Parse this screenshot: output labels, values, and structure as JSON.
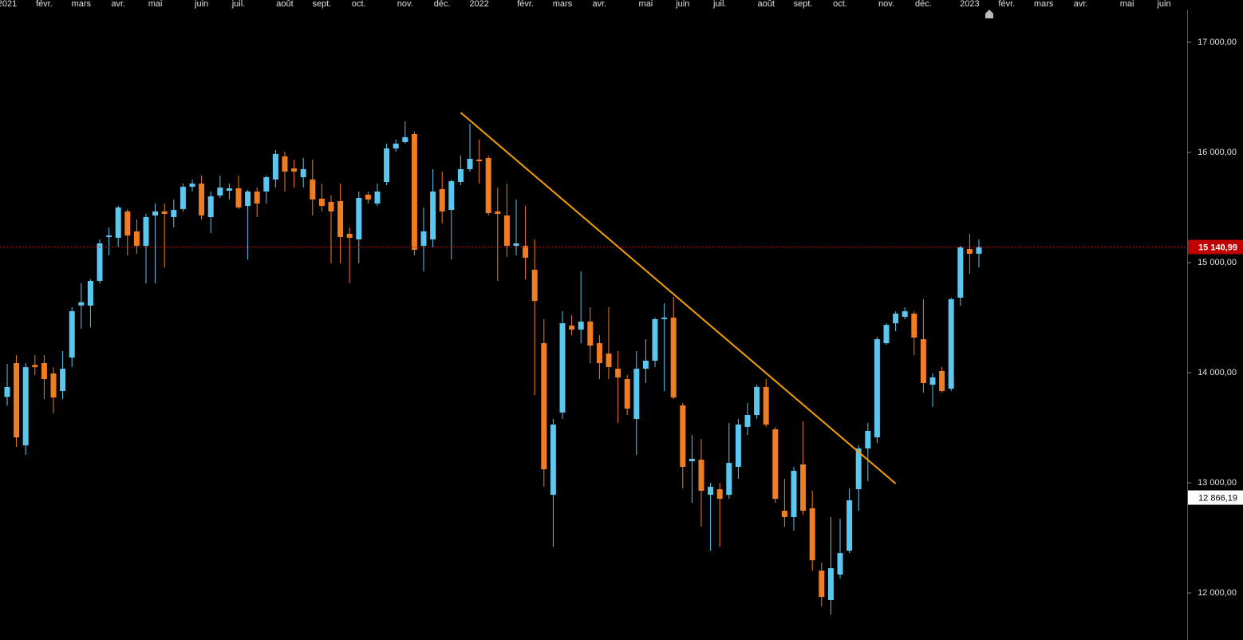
{
  "chart_data": {
    "type": "candlestick",
    "categories": [
      "2021",
      null,
      null,
      null,
      "févr.",
      null,
      null,
      null,
      "mars",
      null,
      null,
      null,
      "avr.",
      null,
      null,
      null,
      "mai",
      null,
      null,
      null,
      null,
      "juin",
      null,
      null,
      null,
      "juil.",
      null,
      null,
      null,
      null,
      "août",
      null,
      null,
      null,
      "sept.",
      null,
      null,
      null,
      "oct.",
      null,
      null,
      null,
      null,
      "nov.",
      null,
      null,
      null,
      "déc.",
      null,
      null,
      null,
      "2022",
      null,
      null,
      null,
      null,
      "févr.",
      null,
      null,
      null,
      "mars",
      null,
      null,
      null,
      "avr.",
      null,
      null,
      null,
      null,
      "mai",
      null,
      null,
      null,
      "juin",
      null,
      null,
      null,
      "juil.",
      null,
      null,
      null,
      null,
      "août",
      null,
      null,
      null,
      "sept.",
      null,
      null,
      null,
      "oct.",
      null,
      null,
      null,
      null,
      "nov.",
      null,
      null,
      null,
      "déc.",
      null,
      null,
      null,
      null,
      "2023",
      null,
      null,
      null,
      "févr.",
      null,
      null,
      null,
      "mars",
      null,
      null,
      null,
      "avr.",
      null,
      null,
      null,
      null,
      "mai",
      null,
      null,
      null,
      "juin",
      null,
      null
    ],
    "open": [
      13780,
      14087,
      13340,
      14070,
      14087,
      13993,
      13834,
      14138,
      14610,
      14609,
      14834,
      15232,
      15225,
      15464,
      15283,
      15152,
      15427,
      15464,
      15413,
      15486,
      15688,
      15717,
      15413,
      15609,
      15652,
      15674,
      15514,
      15645,
      15645,
      15754,
      15964,
      15855,
      15775,
      15754,
      15580,
      15551,
      15558,
      15261,
      15210,
      15616,
      15536,
      15732,
      16036,
      16094,
      16167,
      15152,
      15210,
      15667,
      15478,
      15732,
      15848,
      15935,
      15949,
      15464,
      15428,
      15152,
      15152,
      14935,
      14268,
      12891,
      13638,
      14428,
      14391,
      14464,
      14268,
      14174,
      14036,
      13942,
      13580,
      14036,
      14109,
      14486,
      14500,
      13703,
      13196,
      13210,
      12891,
      12942,
      12891,
      13145,
      13508,
      13616,
      13870,
      13486,
      12747,
      12689,
      13167,
      12769,
      12203,
      11935,
      12167,
      12384,
      12942,
      13312,
      13413,
      14268,
      14449,
      14507,
      14536,
      14304,
      13891,
      14015,
      13855,
      14681,
      15123,
      15080,
      null,
      null,
      null,
      null,
      null,
      null,
      null,
      null,
      null,
      null,
      null,
      null,
      null,
      null,
      null,
      null,
      null,
      null,
      null,
      null,
      null,
      null
    ],
    "high": [
      14080,
      14160,
      14087,
      14160,
      14160,
      14050,
      14196,
      14594,
      14812,
      14848,
      15210,
      15319,
      15514,
      15486,
      15391,
      15442,
      15536,
      15536,
      15572,
      15717,
      15754,
      15790,
      15645,
      15790,
      15717,
      15790,
      15660,
      15681,
      15790,
      16022,
      16007,
      15935,
      15949,
      15935,
      15717,
      15609,
      15717,
      15319,
      15645,
      15645,
      15717,
      16080,
      16116,
      16283,
      16189,
      15500,
      15848,
      15826,
      15754,
      15971,
      16261,
      16116,
      15971,
      15681,
      15717,
      15572,
      15514,
      15210,
      14486,
      13580,
      14558,
      14522,
      14920,
      14594,
      14341,
      14594,
      14196,
      13978,
      14196,
      14304,
      14500,
      14630,
      14688,
      13725,
      13435,
      13399,
      13000,
      13000,
      13544,
      13580,
      13725,
      13891,
      13942,
      13507,
      13036,
      13145,
      13558,
      12928,
      12275,
      12689,
      12674,
      12950,
      13341,
      13544,
      14326,
      14449,
      14558,
      14594,
      14558,
      14667,
      13993,
      14051,
      14681,
      15152,
      15261,
      15210,
      null,
      null,
      null,
      null,
      null,
      null,
      null,
      null,
      null,
      null,
      null,
      null,
      null,
      null,
      null,
      null,
      null,
      null,
      null,
      null,
      null,
      null
    ],
    "low": [
      13700,
      13326,
      13254,
      13978,
      13761,
      13631,
      13761,
      14051,
      14398,
      14413,
      14812,
      15065,
      15138,
      15065,
      15080,
      14812,
      14812,
      14957,
      15319,
      15464,
      15645,
      15391,
      15268,
      15587,
      15572,
      15486,
      15029,
      15413,
      15536,
      15681,
      15645,
      15681,
      15681,
      15427,
      15464,
      14993,
      14993,
      14812,
      14993,
      15536,
      15514,
      15703,
      16007,
      16080,
      15065,
      14920,
      15138,
      15355,
      15029,
      15703,
      15826,
      15717,
      15427,
      14834,
      15051,
      15065,
      14848,
      13797,
      12964,
      12420,
      13580,
      14341,
      14268,
      14087,
      13942,
      13942,
      13544,
      13616,
      13254,
      13906,
      14051,
      13833,
      13761,
      12950,
      12819,
      12602,
      12384,
      12420,
      12855,
      13036,
      13435,
      13580,
      13507,
      12819,
      12602,
      12565,
      12710,
      12203,
      11877,
      11804,
      12130,
      12362,
      12746,
      13015,
      13362,
      14254,
      14377,
      14486,
      14159,
      13819,
      13689,
      13819,
      13833,
      14609,
      14899,
      14957,
      null,
      null,
      null,
      null,
      null,
      null,
      null,
      null,
      null,
      null,
      null,
      null,
      null,
      null,
      null,
      null,
      null,
      null,
      null,
      null,
      null,
      null
    ],
    "close": [
      13870,
      13413,
      14050,
      14050,
      13942,
      13775,
      14036,
      14558,
      14640,
      14834,
      15174,
      15246,
      15500,
      15246,
      15152,
      15413,
      15464,
      15442,
      15478,
      15688,
      15717,
      15428,
      15601,
      15681,
      15674,
      15500,
      15645,
      15536,
      15775,
      15986,
      15826,
      15826,
      15848,
      15573,
      15514,
      15464,
      15232,
      15225,
      15587,
      15572,
      15645,
      16036,
      16080,
      16138,
      15116,
      15283,
      15645,
      15464,
      15739,
      15848,
      15942,
      15920,
      15449,
      15442,
      15152,
      15174,
      15044,
      14652,
      13123,
      13529,
      14449,
      14391,
      14464,
      14246,
      14087,
      14051,
      13957,
      13674,
      14036,
      14109,
      14486,
      14500,
      13775,
      13145,
      13218,
      12928,
      12964,
      12855,
      13181,
      13529,
      13616,
      13870,
      13529,
      12855,
      12689,
      13109,
      12747,
      12297,
      11964,
      12225,
      12362,
      12841,
      13312,
      13471,
      14304,
      14434,
      14536,
      14558,
      14319,
      13906,
      13957,
      13834,
      14667,
      15138,
      15080,
      15140.99,
      null,
      null,
      null,
      null,
      null,
      null,
      null,
      null,
      null,
      null,
      null,
      null,
      null,
      null,
      null,
      null,
      null,
      null,
      null,
      null,
      null,
      null
    ],
    "up_color": "#5bc6ee",
    "down_color": "#f07d22",
    "ylim": [
      11573,
      17297
    ],
    "yticks": [
      {
        "value": 12000,
        "label": "12 000,00"
      },
      {
        "value": 13000,
        "label": "13 000,00"
      },
      {
        "value": 14000,
        "label": "14 000,00"
      },
      {
        "value": 15000,
        "label": "15 000,00"
      },
      {
        "value": 16000,
        "label": "16 000,00"
      },
      {
        "value": 17000,
        "label": "17 000,00"
      }
    ],
    "trendline": {
      "start": [
        49,
        16362
      ],
      "end": [
        96,
        12993
      ],
      "color": "#f5a000"
    },
    "price_labels": [
      {
        "value": 15140.99,
        "label": "15 140,99",
        "color": "#c00000",
        "line": true
      },
      {
        "value": 12866.19,
        "label": "12 866,19",
        "color": "#ffffff",
        "line": false
      }
    ]
  }
}
